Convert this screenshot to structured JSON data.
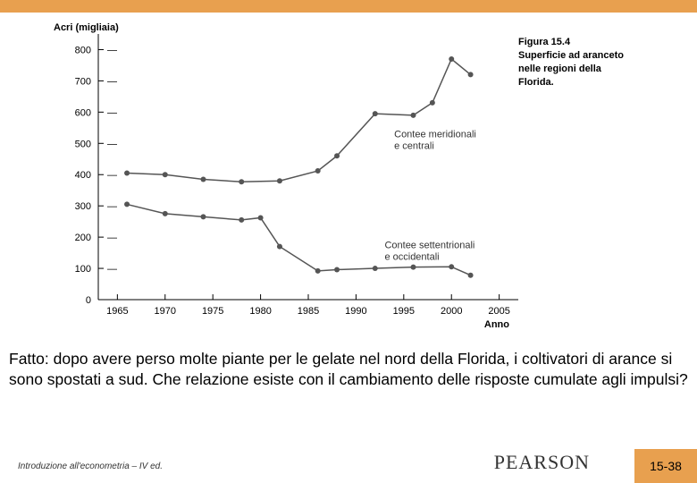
{
  "colors": {
    "accent": "#e8a04f",
    "line": "#555555",
    "marker": "#555555",
    "text": "#000000",
    "background": "#ffffff"
  },
  "chart": {
    "type": "line",
    "y_axis_title": "Acri (migliaia)",
    "x_axis_title": "Anno",
    "y_ticks": [
      0,
      100,
      200,
      300,
      400,
      500,
      600,
      700,
      800
    ],
    "ylim": [
      0,
      850
    ],
    "x_ticks": [
      1965,
      1970,
      1975,
      1980,
      1985,
      1990,
      1995,
      2000,
      2005
    ],
    "xlim": [
      1963,
      2007
    ],
    "marker_radius": 3,
    "line_width": 1.5,
    "series": [
      {
        "name": "Contee meridionali e centrali",
        "label_x": 1994,
        "label_y": 520,
        "points": [
          {
            "x": 1966,
            "y": 405
          },
          {
            "x": 1970,
            "y": 400
          },
          {
            "x": 1974,
            "y": 385
          },
          {
            "x": 1978,
            "y": 377
          },
          {
            "x": 1982,
            "y": 380
          },
          {
            "x": 1986,
            "y": 412
          },
          {
            "x": 1988,
            "y": 460
          },
          {
            "x": 1992,
            "y": 595
          },
          {
            "x": 1996,
            "y": 590
          },
          {
            "x": 1998,
            "y": 630
          },
          {
            "x": 2000,
            "y": 770
          },
          {
            "x": 2002,
            "y": 720
          }
        ]
      },
      {
        "name": "Contee settentrionali e occidentali",
        "label_x": 1993,
        "label_y": 165,
        "points": [
          {
            "x": 1966,
            "y": 305
          },
          {
            "x": 1970,
            "y": 275
          },
          {
            "x": 1974,
            "y": 265
          },
          {
            "x": 1978,
            "y": 255
          },
          {
            "x": 1980,
            "y": 262
          },
          {
            "x": 1982,
            "y": 170
          },
          {
            "x": 1986,
            "y": 92
          },
          {
            "x": 1988,
            "y": 96
          },
          {
            "x": 1992,
            "y": 100
          },
          {
            "x": 1996,
            "y": 104
          },
          {
            "x": 2000,
            "y": 105
          },
          {
            "x": 2002,
            "y": 78
          }
        ]
      }
    ]
  },
  "figure_caption": {
    "number": "Figura 15.4",
    "title_line1": "Superficie ad aranceto",
    "title_line2": "nelle regioni della",
    "title_line3": "Florida."
  },
  "body_text": "Fatto: dopo avere perso molte piante per le gelate nel nord della Florida, i coltivatori di arance si sono spostati a sud. Che relazione esiste con il cambiamento delle risposte cumulate agli impulsi?",
  "footer": {
    "left_text": "Introduzione all'econometria – IV ed.",
    "logo": "PEARSON",
    "page_number": "15-38"
  }
}
